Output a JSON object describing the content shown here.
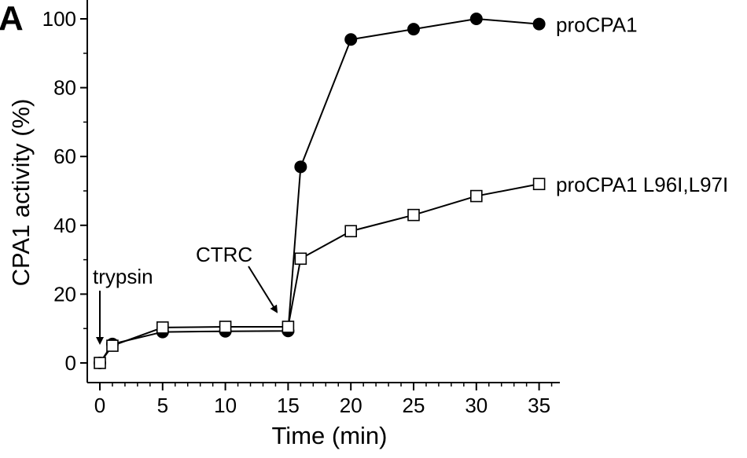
{
  "panel_label": "A",
  "chart_data": {
    "type": "line",
    "xlabel": "Time (min)",
    "ylabel": "CPA1 activity (%)",
    "xlim": [
      -1,
      37
    ],
    "ylim": [
      -5,
      105
    ],
    "xticks": [
      0,
      5,
      10,
      15,
      20,
      25,
      30,
      35
    ],
    "yticks": [
      0,
      20,
      40,
      60,
      80,
      100
    ],
    "grid": false,
    "legend": "series labels placed at right end of each line",
    "series": [
      {
        "name": "proCPA1",
        "marker": "filled-circle",
        "color": "#000000",
        "x": [
          0,
          1,
          5,
          10,
          15,
          16,
          20,
          25,
          30,
          35
        ],
        "y": [
          0,
          5.5,
          9,
          9.2,
          9.3,
          57,
          94,
          97,
          100,
          98.5
        ]
      },
      {
        "name": "proCPA1 L96I,L97I",
        "marker": "open-square",
        "color": "#000000",
        "x": [
          0,
          1,
          5,
          10,
          15,
          16,
          20,
          25,
          30,
          35
        ],
        "y": [
          0,
          5,
          10.3,
          10.5,
          10.5,
          30.3,
          38.3,
          43,
          48.5,
          52
        ]
      }
    ],
    "annotations": [
      {
        "text": "trypsin",
        "x": 0,
        "y": 0
      },
      {
        "text": "CTRC",
        "x": 15,
        "y": 10
      }
    ]
  }
}
